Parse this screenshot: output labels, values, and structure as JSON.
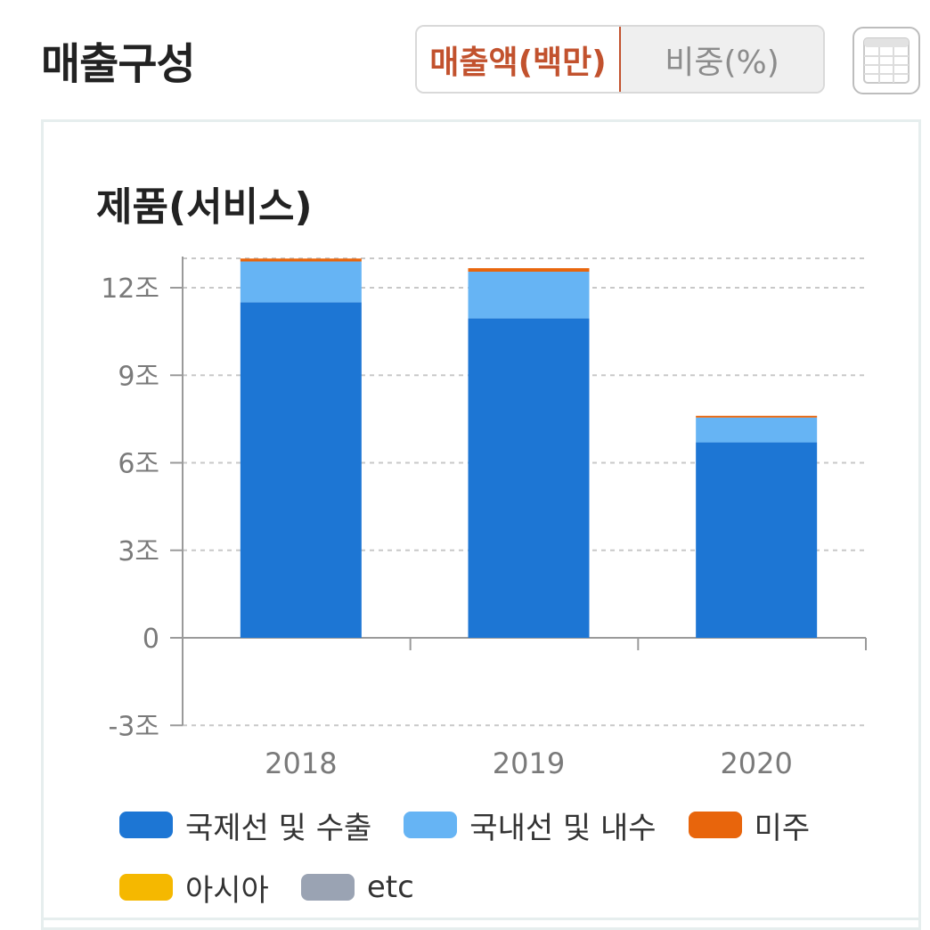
{
  "header": {
    "title": "매출구성",
    "toggle": {
      "active_label": "매출액(백만)",
      "inactive_label": "비중(%)"
    },
    "table_icon": "table-grid-icon"
  },
  "colors": {
    "domestic_export": "#1d76d4",
    "domestic_local": "#66b4f4",
    "americas": "#e8650c",
    "asia": "#f5b800",
    "etc": "#9aa3b3",
    "accent": "#c2522e"
  },
  "chart_data": {
    "type": "bar",
    "stacked": true,
    "title": "제품(서비스)",
    "categories": [
      "2018",
      "2019",
      "2020"
    ],
    "series": [
      {
        "name": "국제선 및 수출",
        "color_key": "domestic_export",
        "values": [
          11.5,
          10.95,
          6.7
        ]
      },
      {
        "name": "국내선 및 내수",
        "color_key": "domestic_local",
        "values": [
          1.4,
          1.6,
          0.85
        ]
      },
      {
        "name": "미주",
        "color_key": "americas",
        "values": [
          0.1,
          0.12,
          0.06
        ]
      },
      {
        "name": "아시아",
        "color_key": "asia",
        "values": [
          0,
          0,
          0
        ]
      },
      {
        "name": "etc",
        "color_key": "etc",
        "values": [
          0,
          0,
          0
        ]
      }
    ],
    "yticks": [
      -3,
      0,
      3,
      6,
      9,
      12
    ],
    "ytick_labels": [
      "-3조",
      "0",
      "3조",
      "6조",
      "9조",
      "12조"
    ],
    "ylim": [
      -3,
      13
    ],
    "unit": "조",
    "grid": true,
    "legend_position": "bottom"
  }
}
